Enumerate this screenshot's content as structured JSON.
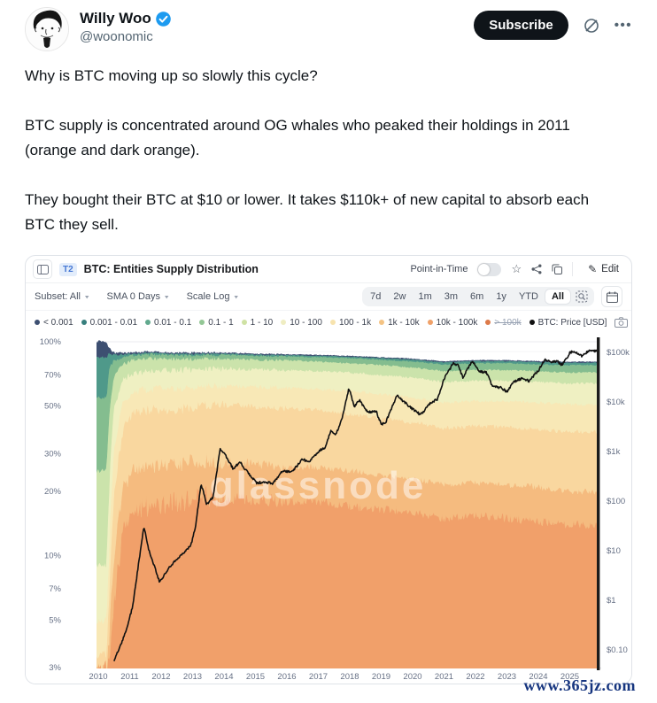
{
  "tweet": {
    "author": "Willy Woo",
    "handle": "@woonomic",
    "verified": true,
    "subscribe_label": "Subscribe",
    "action_icons": [
      "grok-icon",
      "more-icon"
    ],
    "body_paragraphs": [
      "Why is BTC moving up so slowly this cycle?",
      "BTC supply is concentrated around OG whales who peaked their holdings in 2011 (orange and dark orange).",
      "They bought their BTC at $10 or lower. It takes $110k+ of new capital to absorb each BTC they sell."
    ]
  },
  "chart": {
    "panel_tab": "T2",
    "title": "BTC: Entities Supply Distribution",
    "point_in_time_label": "Point-in-Time",
    "point_in_time_enabled": false,
    "edit_label": "Edit",
    "header_icons": [
      "sidebar-toggle-icon",
      "star-icon",
      "share-icon",
      "copy-icon",
      "pencil-icon"
    ],
    "dropdowns": [
      {
        "label": "Subset: All"
      },
      {
        "label": "SMA 0 Days"
      },
      {
        "label": "Scale Log"
      }
    ],
    "ranges": [
      "7d",
      "2w",
      "1m",
      "3m",
      "6m",
      "1y",
      "YTD",
      "All"
    ],
    "active_range": "All",
    "watermark": "glassnode",
    "footer_site": "www.365jz.com"
  },
  "chart_data": {
    "type": "area",
    "stacked": true,
    "y_scale": "log",
    "title": "BTC: Entities Supply Distribution",
    "x_ticks": [
      2010,
      2011,
      2012,
      2013,
      2014,
      2015,
      2016,
      2017,
      2018,
      2019,
      2020,
      2021,
      2022,
      2023,
      2024,
      2025
    ],
    "pct_axis": {
      "side": "left",
      "ticks": [
        {
          "label": "100%",
          "value": 100
        },
        {
          "label": "70%",
          "value": 70
        },
        {
          "label": "50%",
          "value": 50
        },
        {
          "label": "30%",
          "value": 30
        },
        {
          "label": "20%",
          "value": 20
        },
        {
          "label": "10%",
          "value": 10
        },
        {
          "label": "7%",
          "value": 7
        },
        {
          "label": "5%",
          "value": 5
        },
        {
          "label": "3%",
          "value": 3
        }
      ],
      "minor_gridlines": [
        90,
        80,
        60,
        40,
        15,
        9,
        8,
        6,
        4
      ]
    },
    "price_axis": {
      "side": "right",
      "ticks": [
        {
          "label": "$100k",
          "value": 100000
        },
        {
          "label": "$10k",
          "value": 10000
        },
        {
          "label": "$1k",
          "value": 1000
        },
        {
          "label": "$100",
          "value": 100
        },
        {
          "label": "$10",
          "value": 10
        },
        {
          "label": "$1",
          "value": 1
        },
        {
          "label": "$0.10",
          "value": 0.1
        }
      ]
    },
    "keyframe_years": [
      2010.26,
      2010.34,
      2010.5,
      2010.8,
      2011.1,
      2011.5,
      2012,
      2012.7,
      2013.5,
      2014,
      2015,
      2016,
      2017,
      2018,
      2019,
      2020,
      2021,
      2022,
      2023,
      2024,
      2025,
      2025.9
    ],
    "series": [
      {
        "name": "10k - 100k",
        "color": "#f1a06a",
        "cum_pct": [
          3,
          3,
          6,
          13,
          16,
          17,
          17.5,
          18,
          19,
          18.5,
          18.5,
          18,
          18,
          17,
          16.5,
          16,
          15,
          15.5,
          15,
          14.5,
          14,
          14
        ]
      },
      {
        "name": "1k - 10k",
        "color": "#f5bb7f",
        "cum_pct": [
          3,
          4,
          10,
          21,
          25,
          26,
          26.5,
          27,
          28,
          27.5,
          27,
          26,
          26,
          25,
          24,
          23,
          21.5,
          22,
          21.5,
          21,
          20,
          20
        ]
      },
      {
        "name": "100 - 1k",
        "color": "#f9d79f",
        "cum_pct": [
          3.5,
          6,
          19,
          39,
          46,
          48,
          48.5,
          49,
          51,
          50.5,
          50,
          49,
          48,
          46,
          44,
          42,
          39.5,
          40.5,
          40,
          39,
          38,
          38
        ]
      },
      {
        "name": "10 - 100",
        "color": "#f8e8b6",
        "cum_pct": [
          5,
          10,
          31,
          53,
          58,
          60,
          60.5,
          61,
          62,
          62,
          62,
          61,
          60,
          59,
          57,
          55,
          52,
          53,
          53,
          52,
          51,
          51
        ]
      },
      {
        "name": "1 - 10",
        "color": "#eff0c2",
        "cum_pct": [
          9,
          20,
          49,
          67,
          71,
          73,
          73.5,
          74,
          75,
          75,
          74.5,
          74,
          73,
          72,
          70,
          68,
          65,
          66,
          66,
          65,
          64,
          64
        ]
      },
      {
        "name": "0.1 - 1",
        "color": "#cbe3ab",
        "cum_pct": [
          25,
          45,
          69,
          79,
          82,
          84,
          83.5,
          83,
          83.5,
          83.5,
          82.5,
          82,
          81,
          79.5,
          78,
          76,
          73,
          74,
          74,
          73,
          72,
          72
        ]
      },
      {
        "name": "0.01 - 0.1",
        "color": "#84bd8f",
        "cum_pct": [
          55,
          75,
          82,
          85,
          86.5,
          87.5,
          87,
          86.5,
          87,
          87,
          86,
          85.5,
          85,
          84,
          82.5,
          81,
          78.5,
          79.5,
          79.5,
          78.5,
          78,
          78
        ]
      },
      {
        "name": "0.001 - 0.01",
        "color": "#4f998a",
        "cum_pct": [
          85,
          88,
          87,
          87.5,
          88.3,
          89,
          88.5,
          88,
          88.3,
          88.2,
          87.2,
          86.7,
          86.2,
          85.3,
          84,
          82.7,
          80.3,
          81.3,
          81.3,
          80.5,
          80,
          80
        ]
      },
      {
        "name": "< 0.001",
        "color": "#3d4f71",
        "cum_pct": [
          100,
          93,
          88.5,
          88.2,
          88.8,
          89.5,
          89,
          88.4,
          88.8,
          88.7,
          87.6,
          87.1,
          86.6,
          85.7,
          84.4,
          83.1,
          80.8,
          81.8,
          81.8,
          81,
          80.5,
          80.5
        ]
      }
    ],
    "hidden_series": {
      "name": "> 100k",
      "color": "#dd7a49"
    },
    "price_line": {
      "name": "BTC: Price [USD]",
      "color": "#111111",
      "points": [
        [
          2010.5,
          0.06
        ],
        [
          2010.9,
          0.25
        ],
        [
          2011.1,
          0.8
        ],
        [
          2011.45,
          31
        ],
        [
          2011.6,
          11
        ],
        [
          2011.95,
          2.3
        ],
        [
          2012.3,
          5
        ],
        [
          2012.7,
          9
        ],
        [
          2012.95,
          13
        ],
        [
          2013.1,
          32
        ],
        [
          2013.27,
          230
        ],
        [
          2013.45,
          85
        ],
        [
          2013.65,
          120
        ],
        [
          2013.88,
          1150
        ],
        [
          2014.05,
          830
        ],
        [
          2014.3,
          440
        ],
        [
          2014.5,
          620
        ],
        [
          2014.75,
          380
        ],
        [
          2015.05,
          230
        ],
        [
          2015.3,
          245
        ],
        [
          2015.55,
          230
        ],
        [
          2015.85,
          400
        ],
        [
          2016.15,
          390
        ],
        [
          2016.5,
          700
        ],
        [
          2016.7,
          610
        ],
        [
          2017.0,
          1000
        ],
        [
          2017.2,
          1180
        ],
        [
          2017.4,
          2600
        ],
        [
          2017.55,
          2200
        ],
        [
          2017.75,
          4400
        ],
        [
          2017.97,
          19000
        ],
        [
          2018.15,
          8200
        ],
        [
          2018.3,
          11000
        ],
        [
          2018.55,
          6400
        ],
        [
          2018.85,
          6300
        ],
        [
          2019.0,
          3500
        ],
        [
          2019.15,
          4000
        ],
        [
          2019.5,
          13500
        ],
        [
          2019.75,
          9800
        ],
        [
          2020.0,
          7200
        ],
        [
          2020.25,
          5500
        ],
        [
          2020.55,
          9200
        ],
        [
          2020.8,
          11500
        ],
        [
          2021.0,
          29000
        ],
        [
          2021.3,
          62000
        ],
        [
          2021.45,
          54000
        ],
        [
          2021.6,
          31000
        ],
        [
          2021.9,
          67000
        ],
        [
          2022.1,
          42000
        ],
        [
          2022.35,
          39000
        ],
        [
          2022.55,
          20000
        ],
        [
          2022.8,
          19500
        ],
        [
          2023.0,
          16200
        ],
        [
          2023.2,
          25000
        ],
        [
          2023.5,
          30500
        ],
        [
          2023.7,
          26500
        ],
        [
          2024.0,
          43000
        ],
        [
          2024.2,
          71000
        ],
        [
          2024.4,
          62000
        ],
        [
          2024.6,
          67000
        ],
        [
          2024.75,
          56000
        ],
        [
          2024.9,
          76000
        ],
        [
          2025.0,
          99000
        ],
        [
          2025.1,
          104000
        ],
        [
          2025.25,
          95000
        ],
        [
          2025.4,
          83000
        ],
        [
          2025.6,
          109000
        ],
        [
          2025.75,
          104000
        ],
        [
          2025.89,
          113000
        ]
      ]
    },
    "legend": [
      {
        "label": "< 0.001",
        "color": "#3d4f71"
      },
      {
        "label": "0.001 - 0.01",
        "color": "#377f7d"
      },
      {
        "label": "0.01 - 0.1",
        "color": "#61a98e"
      },
      {
        "label": "0.1 - 1",
        "color": "#93c795"
      },
      {
        "label": "1 - 10",
        "color": "#cfe2a4"
      },
      {
        "label": "10 - 100",
        "color": "#efedc2"
      },
      {
        "label": "100 - 1k",
        "color": "#f7e3ae"
      },
      {
        "label": "1k - 10k",
        "color": "#f4c383"
      },
      {
        "label": "10k - 100k",
        "color": "#f0a169"
      },
      {
        "label": "> 100k",
        "color": "#dd7a49",
        "hidden": true
      },
      {
        "label": "BTC: Price [USD]",
        "color": "#111111"
      }
    ]
  }
}
